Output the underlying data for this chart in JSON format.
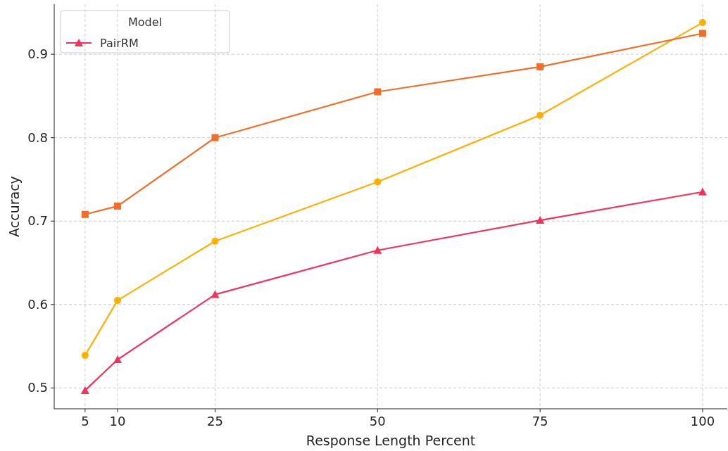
{
  "chart_data": {
    "type": "line",
    "xlabel": "Response Length Percent",
    "ylabel": "Accuracy",
    "legend_title": "Model",
    "x": [
      5,
      10,
      25,
      50,
      75,
      100
    ],
    "series": [
      {
        "color": "#ffb000",
        "marker": "circle",
        "values": [
          0.539,
          0.605,
          0.676,
          0.747,
          0.827,
          0.938
        ]
      },
      {
        "color": "#f46d25",
        "marker": "square",
        "values": [
          0.708,
          0.718,
          0.8,
          0.855,
          0.885,
          0.925
        ]
      },
      {
        "name": "PairRM",
        "color": "#f2335a",
        "marker": "triangle",
        "values": [
          0.497,
          0.534,
          0.612,
          0.665,
          0.701,
          0.735
        ]
      }
    ],
    "xlim": [
      0.25,
      103.8
    ],
    "xticks": [
      5,
      10,
      25,
      50,
      75,
      100
    ],
    "ylim": [
      0.475,
      0.96
    ],
    "yticks": [
      0.5,
      0.6,
      0.7,
      0.8,
      0.9
    ],
    "grid": true,
    "legend": "top left",
    "line_style": "solid"
  }
}
